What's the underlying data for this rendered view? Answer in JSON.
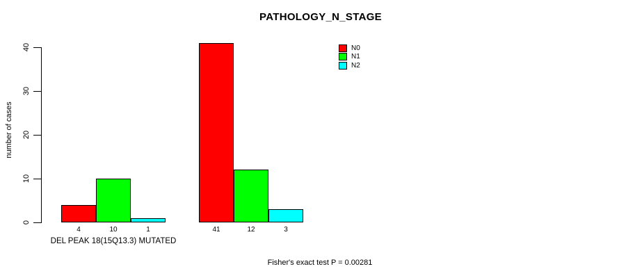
{
  "chart_data": {
    "type": "bar",
    "title": "PATHOLOGY_N_STAGE",
    "ylabel": "number of cases",
    "xlabel": "DEL PEAK 18(15Q13.3) MUTATED",
    "categories": [
      "DEL PEAK 18(15Q13.3) MUTATED",
      ""
    ],
    "series": [
      {
        "name": "N0",
        "color": "#ff0000",
        "values": [
          4,
          41
        ]
      },
      {
        "name": "N1",
        "color": "#00ff00",
        "values": [
          10,
          12
        ]
      },
      {
        "name": "N2",
        "color": "#00ffff",
        "values": [
          1,
          3
        ]
      }
    ],
    "yticks": [
      0,
      10,
      20,
      30,
      40
    ],
    "ylim": [
      0,
      41
    ],
    "grid": false,
    "legend_position": "top-right",
    "bar_value_labels": true,
    "annotation": "Fisher's exact test P = 0.00281"
  }
}
